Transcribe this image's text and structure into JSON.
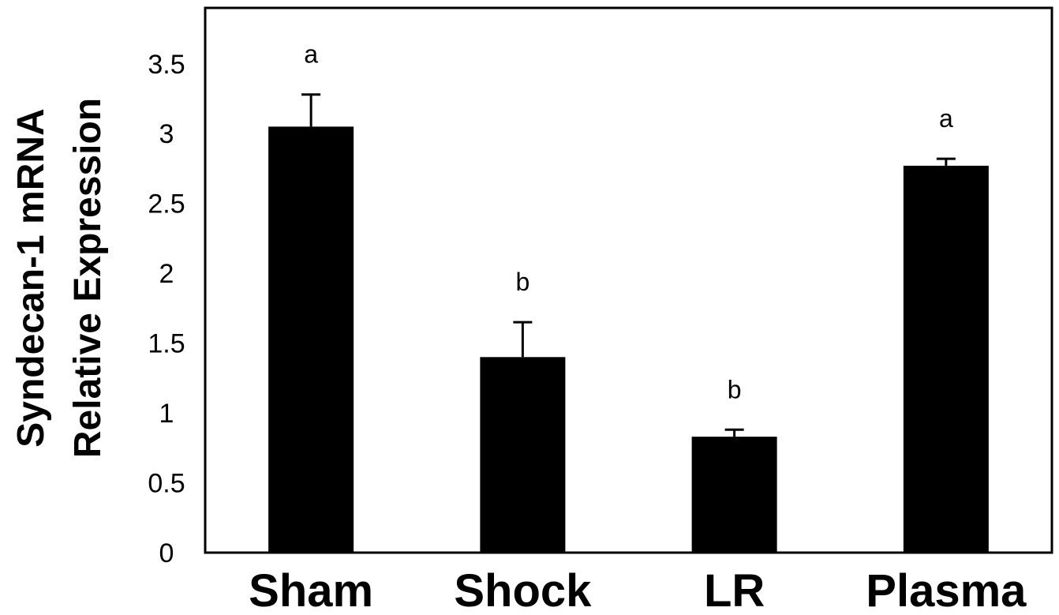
{
  "chart_data": {
    "type": "bar",
    "categories": [
      "Sham",
      "Shock",
      "LR",
      "Plasma"
    ],
    "values": [
      3.05,
      1.4,
      0.83,
      2.77
    ],
    "errors": [
      0.23,
      0.25,
      0.05,
      0.05
    ],
    "significance_labels": [
      "a",
      "b",
      "b",
      "a"
    ],
    "ylabel_lines": [
      "Syndecan-1 mRNA",
      "Relative Expression"
    ],
    "xlabel": "",
    "title": "",
    "ylim": [
      0,
      3.9
    ],
    "yticks": [
      0,
      0.5,
      1,
      1.5,
      2,
      2.5,
      3,
      3.5
    ],
    "ytick_labels": [
      "0",
      "0.5",
      "1",
      "1.5",
      "2",
      "2.5",
      "3",
      "3.5"
    ],
    "grid": false,
    "colors": {
      "bar": "#000000",
      "axis": "#000000",
      "background": "#ffffff"
    }
  }
}
